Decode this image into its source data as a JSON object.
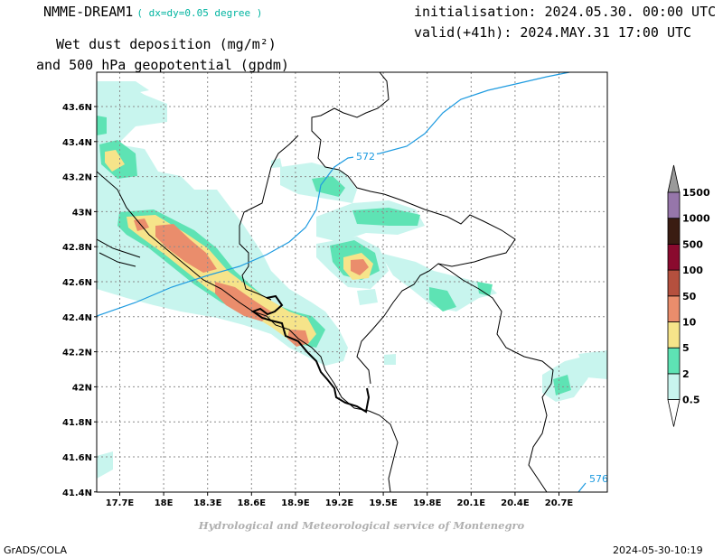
{
  "header": {
    "model": "NMME-DREAM1",
    "resolution": "( dx=dy=0.05 degree )",
    "field_line1": "Wet dust deposition (mg/m²)",
    "field_line2": "and 500 hPa geopotential (gpdm)",
    "initialisation": "initialisation: 2024.05.30. 00:00 UTC",
    "valid": "valid(+41h): 2024.MAY.31 17:00 UTC"
  },
  "footer": {
    "credit": "Hydrological and Meteorological service of Montenegro",
    "software": "GrADS/COLA",
    "timestamp": "2024-05-30-10:19"
  },
  "map": {
    "lon_ticks": [
      "17.7E",
      "18E",
      "18.3E",
      "18.6E",
      "18.9E",
      "19.2E",
      "19.5E",
      "19.8E",
      "20.1E",
      "20.4E",
      "20.7E"
    ],
    "lat_ticks": [
      "43.6N",
      "43.4N",
      "43.2N",
      "43N",
      "42.8N",
      "42.6N",
      "42.4N",
      "42.2N",
      "42N",
      "41.8N",
      "41.6N",
      "41.4N"
    ],
    "contour_labels": [
      "572",
      "576"
    ],
    "contour_color": "#1e9be0"
  },
  "colorbar": {
    "levels": [
      "0.5",
      "2",
      "5",
      "10",
      "50",
      "100",
      "500",
      "1000",
      "1500"
    ],
    "colors": [
      "#c8f5ee",
      "#5ee3b4",
      "#f6e48a",
      "#ea8d6c",
      "#b5503e",
      "#8a0a2e",
      "#3a1c12",
      "#9676aa",
      "#9a9a9a"
    ]
  }
}
